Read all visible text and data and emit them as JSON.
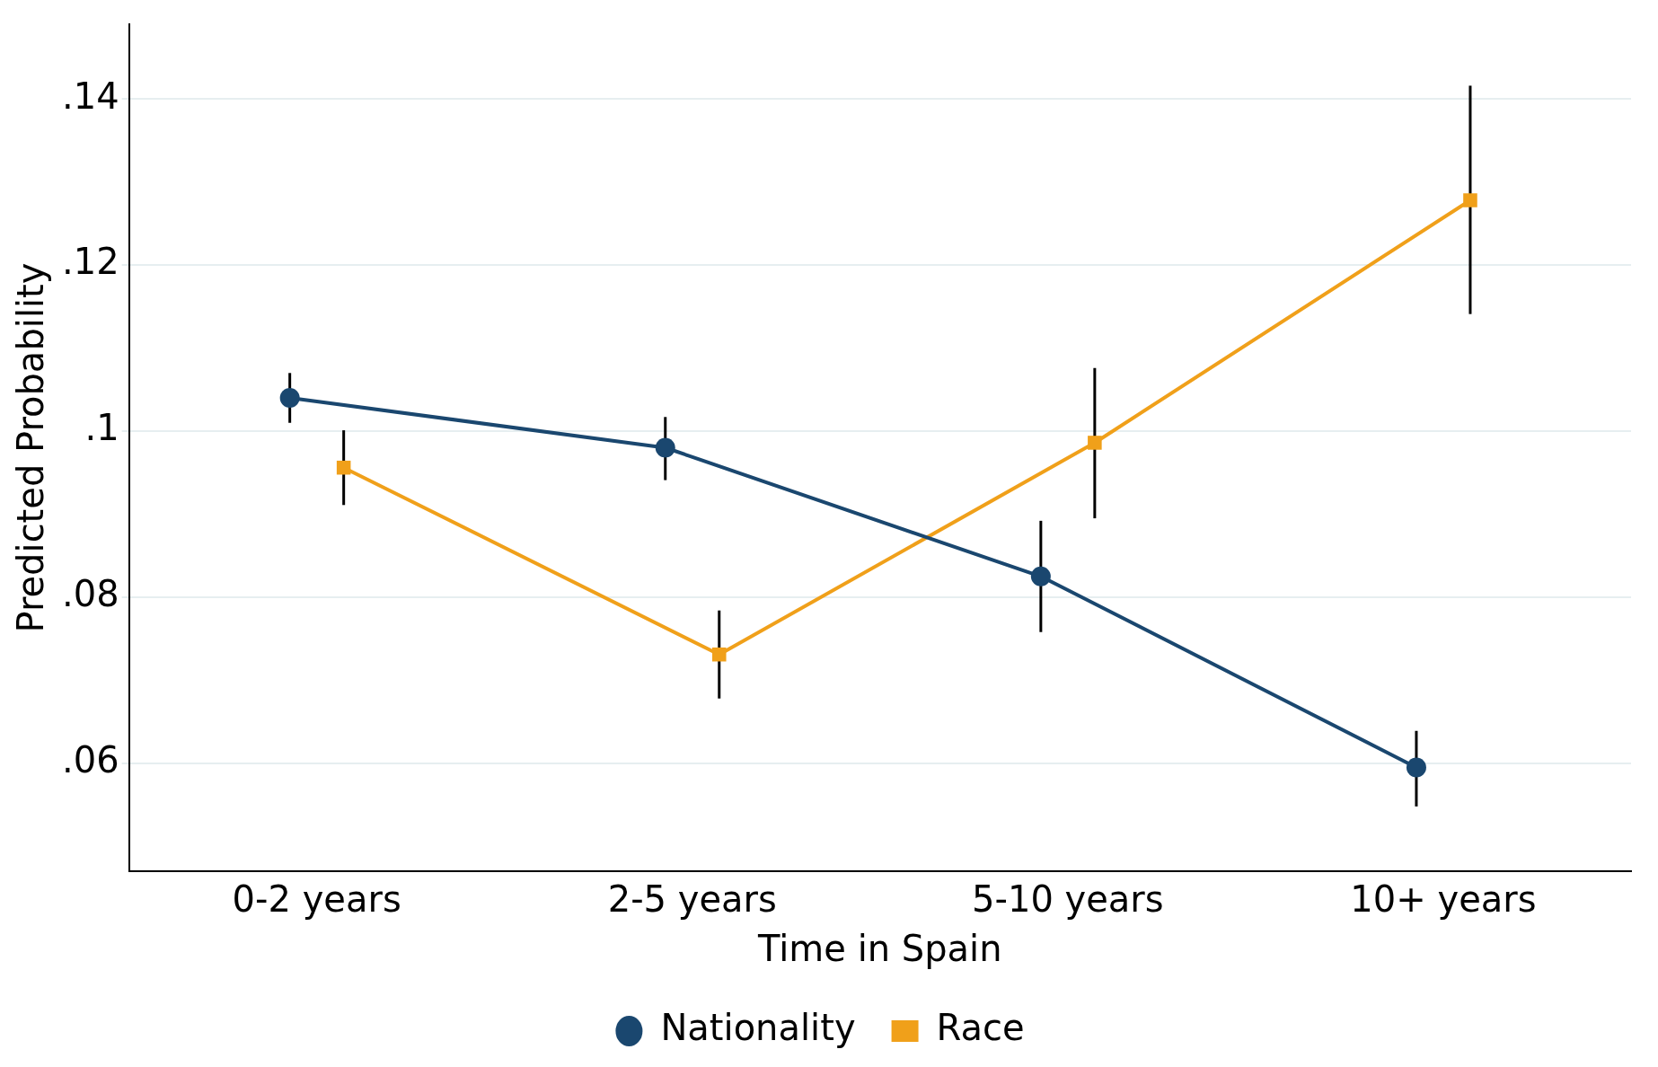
{
  "chart_data": {
    "type": "line",
    "xlabel": "Time in Spain",
    "ylabel": "Predicted Probability",
    "categories": [
      "0-2 years",
      "2-5 years",
      "5-10 years",
      "10+ years"
    ],
    "series": [
      {
        "name": "Nationality",
        "color": "#1a476f",
        "marker": "circle",
        "values": [
          0.104,
          0.098,
          0.0825,
          0.0595
        ],
        "errors": [
          [
            0.101,
            0.107
          ],
          [
            0.0941,
            0.1017
          ],
          [
            0.0758,
            0.0892
          ],
          [
            0.0548,
            0.0639
          ]
        ]
      },
      {
        "name": "Race",
        "color": "#f0a01a",
        "marker": "square",
        "values": [
          0.0956,
          0.0731,
          0.0986,
          0.1278
        ],
        "errors": [
          [
            0.0911,
            0.1001
          ],
          [
            0.0678,
            0.0784
          ],
          [
            0.0895,
            0.1076
          ],
          [
            0.1141,
            0.1416
          ]
        ]
      }
    ],
    "ylim": [
      0.047,
      0.149
    ],
    "yticks": [
      {
        "value": 0.06,
        "label": ".06"
      },
      {
        "value": 0.08,
        "label": ".08"
      },
      {
        "value": 0.1,
        "label": ".1"
      },
      {
        "value": 0.12,
        "label": ".12"
      },
      {
        "value": 0.14,
        "label": ".14"
      }
    ],
    "grid": "y",
    "legend": "bottom"
  }
}
